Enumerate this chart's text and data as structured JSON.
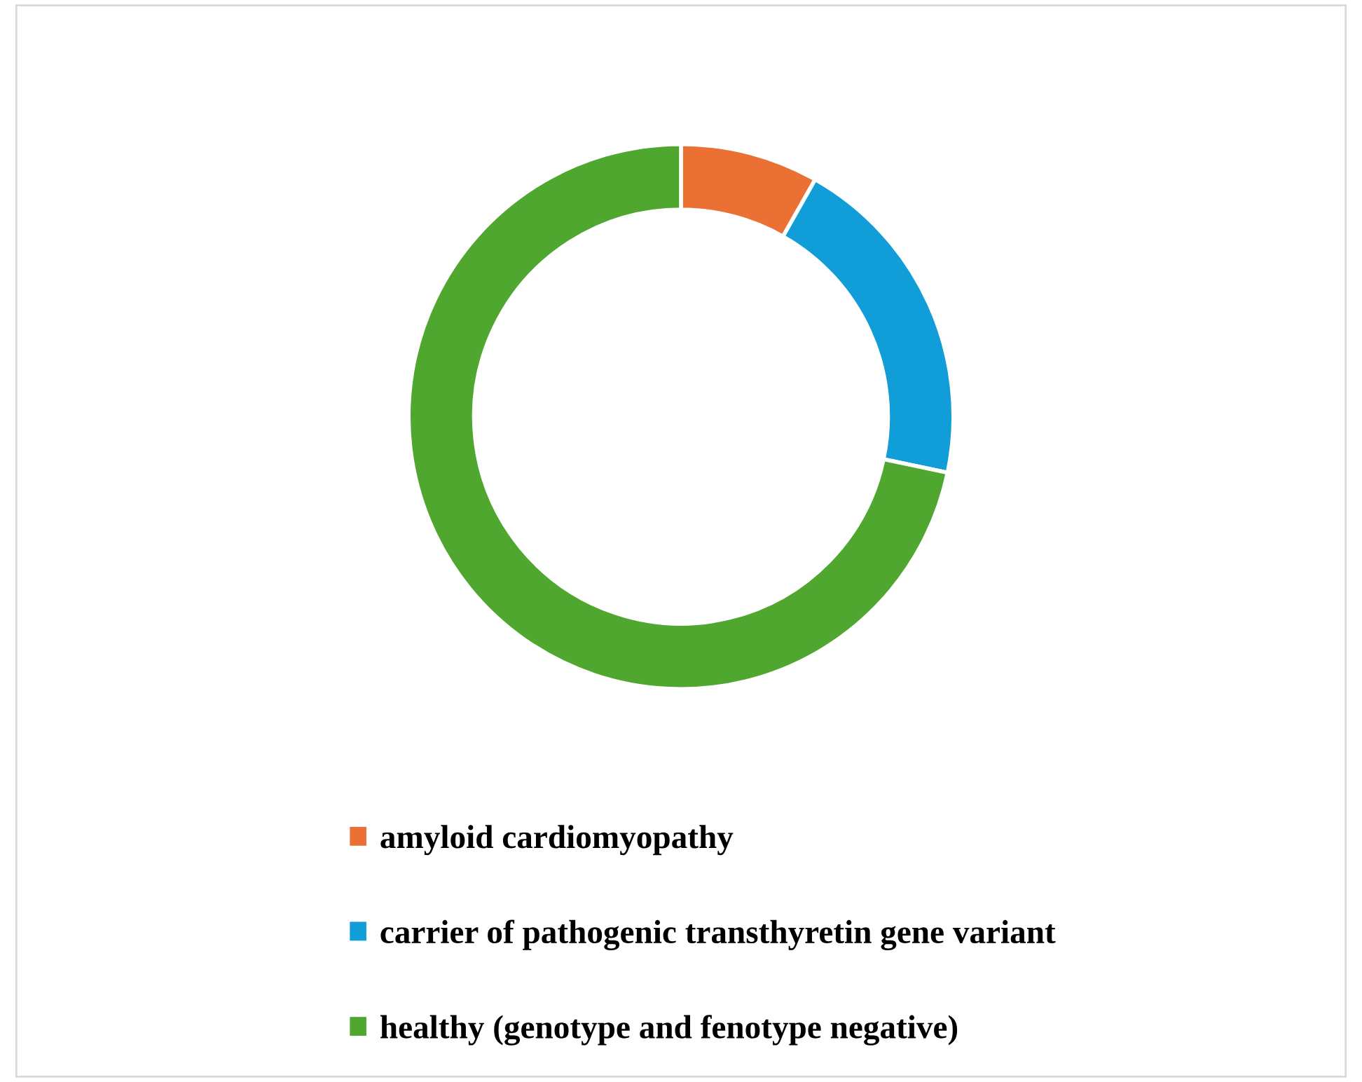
{
  "chart_data": {
    "type": "donut",
    "categories": [
      "amyloid cardiomyopathy",
      "carrier of pathogenic transthyretin gene variant",
      "healthy (genotype and fenotype negative)"
    ],
    "values": [
      8.2,
      20.1,
      71.7
    ],
    "colors": [
      "#ea7133",
      "#119ed8",
      "#4fa72f"
    ],
    "legend": "bottom"
  }
}
